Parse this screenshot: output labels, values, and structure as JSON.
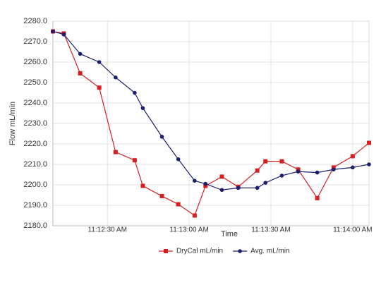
{
  "chart_data": {
    "type": "line",
    "x_label": "Time",
    "y_label": "Flow mL/min",
    "x": [
      "11:12:10 AM",
      "11:12:14 AM",
      "11:12:20 AM",
      "11:12:27 AM",
      "11:12:33 AM",
      "11:12:40 AM",
      "11:12:43 AM",
      "11:12:50 AM",
      "11:12:56 AM",
      "11:13:02 AM",
      "11:13:06 AM",
      "11:13:12 AM",
      "11:13:18 AM",
      "11:13:25 AM",
      "11:13:28 AM",
      "11:13:34 AM",
      "11:13:40 AM",
      "11:13:47 AM",
      "11:13:53 AM",
      "11:14:00 AM",
      "11:14:06 AM"
    ],
    "series": [
      {
        "name": "DryCal mL/min",
        "color": "#d42020",
        "marker": "square",
        "values": [
          2275,
          2274,
          2254.5,
          2247.5,
          2216,
          2212,
          2199.5,
          2194.5,
          2190.5,
          2185,
          2199.5,
          2204,
          2199,
          2207,
          2211.5,
          2211.5,
          2207.5,
          2193.5,
          2208.5,
          2214,
          2220.5
        ]
      },
      {
        "name": "Avg. mL/min",
        "color": "#1c1f6e",
        "marker": "circle",
        "values": [
          2275,
          2273.5,
          2264,
          2260,
          2252.5,
          2245,
          2237.5,
          2223.5,
          2212.5,
          2202,
          2200.5,
          2197.5,
          2198.5,
          2198.5,
          2201,
          2204.5,
          2206.5,
          2206,
          2207.5,
          2208.5,
          2210
        ]
      }
    ],
    "xlim": [
      "11:12:10 AM",
      "11:14:06 AM"
    ],
    "xticks": [
      "11:12:30 AM",
      "11:13:00 AM",
      "11:13:30 AM",
      "11:14:00 AM"
    ],
    "ylim": [
      2180,
      2280
    ],
    "yticks": [
      {
        "value": 2180,
        "label": "2180.0"
      },
      {
        "value": 2190,
        "label": "2190.0"
      },
      {
        "value": 2200,
        "label": "2200.0"
      },
      {
        "value": 2210,
        "label": "2210.0"
      },
      {
        "value": 2220,
        "label": "2220.0"
      },
      {
        "value": 2230,
        "label": "2230.0"
      },
      {
        "value": 2240,
        "label": "2240.0"
      },
      {
        "value": 2250,
        "label": "2250.0"
      },
      {
        "value": 2260,
        "label": "2260.0"
      },
      {
        "value": 2270,
        "label": "2270.0"
      },
      {
        "value": 2280,
        "label": "2280.0"
      }
    ],
    "grid": true,
    "legend": "bottom"
  }
}
